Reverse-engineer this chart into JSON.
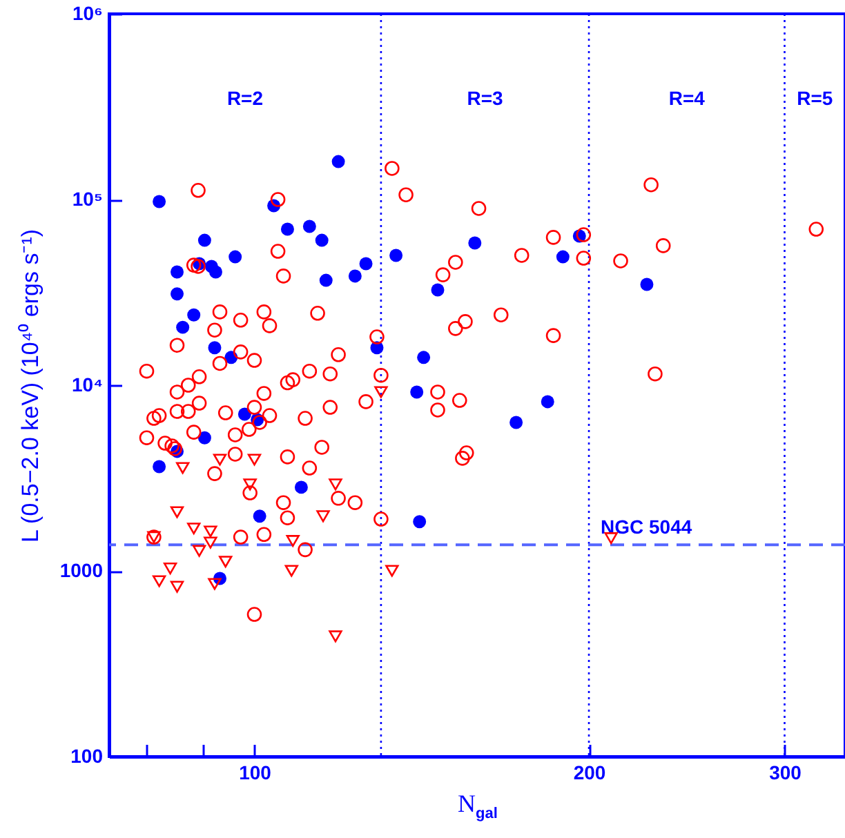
{
  "chart_data": {
    "type": "scatter",
    "xlabel": "N$_{gal}$",
    "ylabel": "L (0.5−2.0 keV) (10⁴⁰ ergs s⁻¹)",
    "log": "xy",
    "xlim": [
      74,
      340
    ],
    "ylim": [
      100,
      1000000
    ],
    "xticks": [
      {
        "value": 80,
        "label": null
      },
      {
        "value": 90,
        "label": null
      },
      100,
      200,
      300
    ],
    "yticks": [
      100,
      1000,
      {
        "value": 10000,
        "label": "10⁴"
      },
      {
        "value": 100000,
        "label": "10⁵"
      },
      {
        "value": 1000000,
        "label": "10⁶"
      }
    ],
    "series": [
      {
        "color": "#0000ff",
        "marker": "circle",
        "x": [
          82.1,
          119.0,
          104.1,
          107.1,
          112.1,
          115.0,
          90.2,
          96.1,
          134.1,
          126.0,
          123.2,
          116.0,
          85.2,
          89.2,
          91.5,
          92.3,
          85.2,
          88.2,
          86.2,
          92.1,
          95.3,
          128.9,
          98.0,
          100.6,
          90.2,
          85.2,
          82.1,
          110.2,
          101.1,
          93.1,
          157.9,
          146.2,
          189.5,
          196.1,
          225.5,
          142.0,
          140.0,
          183.6,
          172.0,
          140.8
        ],
        "values": [
          97500,
          160000,
          92600,
          69200,
          71600,
          60300,
          60300,
          49100,
          50000,
          45100,
          38700,
          36700,
          40700,
          45100,
          43600,
          40700,
          31000,
          23900,
          20500,
          15900,
          14100,
          15900,
          6980,
          6520,
          5210,
          4400,
          3640,
          2820,
          1970,
          910,
          58300,
          32600,
          49100,
          63500,
          34900,
          14100,
          9180,
          8150,
          6300,
          1840
        ]
      },
      {
        "color": "#ff0000",
        "marker": "circle",
        "x": [
          89.0,
          105.0,
          105.0,
          106.2,
          88.2,
          89.0,
          93.1,
          97.2,
          102.0,
          103.2,
          114.0,
          92.1,
          85.2,
          97.2,
          93.1,
          100,
          119.0,
          80.0,
          87.2,
          89.2,
          85.2,
          107.1,
          108.3,
          112.1,
          117.0,
          128.9,
          130.0,
          126.0,
          102.0,
          89.2,
          117.0,
          81.2,
          82.1,
          85.2,
          87.2,
          94.2,
          100,
          103.2,
          101.1,
          111.1,
          98.9,
          96.1,
          88.2,
          80.0,
          83.1,
          84.3,
          84.8,
          96.1,
          115.0,
          107.1,
          112.1,
          92.1,
          99.1,
          106.2,
          119.0,
          123.2,
          107.1,
          130.0,
          102.0,
          97.2,
          81.2,
          111.1,
          100,
          133.0,
          136.9,
          159.2,
          185.8,
          197.8,
          174.0,
          197.8,
          213.6,
          227.5,
          233.3,
          320.3,
          151.7,
          147.8,
          166.7,
          154.8,
          151.7,
          185.8,
          229.4,
          146.2,
          153.0,
          146.2,
          155.2,
          153.9
        ],
        "values": [
          112000,
          100000,
          52600,
          38700,
          44300,
          43600,
          24800,
          22400,
          24800,
          20900,
          24400,
          19800,
          16400,
          15100,
          13100,
          13600,
          14600,
          11900,
          10000,
          11100,
          9180,
          10300,
          10700,
          11900,
          11500,
          18200,
          11300,
          8150,
          9030,
          8000,
          7600,
          6630,
          6860,
          7220,
          7220,
          7100,
          7600,
          6860,
          6300,
          6630,
          5780,
          5400,
          5580,
          5210,
          4870,
          4710,
          4550,
          4250,
          4630,
          4110,
          3580,
          3340,
          2630,
          2330,
          2460,
          2330,
          1930,
          1900,
          1570,
          1520,
          1520,
          1300,
          583,
          147000,
          106000,
          89500,
          62500,
          64600,
          50000,
          48300,
          46700,
          120000,
          56400,
          69200,
          45900,
          39300,
          23900,
          22000,
          20200,
          18500,
          11500,
          9180,
          8280,
          7350,
          4320,
          4040
        ]
      },
      {
        "color": "#ff0000",
        "marker": "triangle",
        "x": [
          130.0,
          86.2,
          93.1,
          100,
          99.1,
          118.3,
          85.2,
          88.2,
          91.3,
          91.3,
          81.2,
          89.2,
          94.2,
          108.3,
          115.3,
          84.0,
          82.1,
          85.2,
          92.1,
          108.0,
          133.0,
          118.3,
          209.4
        ],
        "values": [
          9180,
          3580,
          3970,
          3970,
          2920,
          2920,
          2070,
          1690,
          1630,
          1420,
          1520,
          1280,
          1120,
          1450,
          1970,
          1030,
          880,
          821,
          850,
          1000,
          1000,
          444,
          1500
        ]
      }
    ],
    "ref_lines": [
      {
        "axis": "x",
        "value": 130,
        "line_style": "dotted",
        "color": "#0000ff"
      },
      {
        "axis": "x",
        "value": 200,
        "line_style": "dotted",
        "color": "#0000ff"
      },
      {
        "axis": "x",
        "value": 300,
        "line_style": "dotted",
        "color": "#0000ff"
      },
      {
        "axis": "y",
        "value": 1380,
        "label": "NGC 5044",
        "line_style": "dashed",
        "color": "#5566ff"
      }
    ],
    "annotations": [
      "R=2",
      "R=3",
      "R=4",
      "R=5"
    ]
  }
}
